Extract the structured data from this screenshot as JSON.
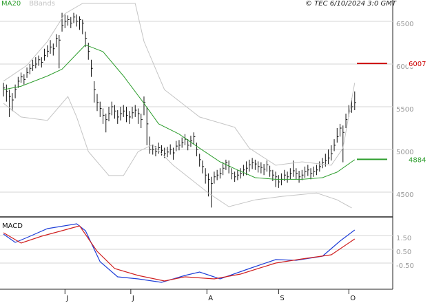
{
  "chart_data": [
    {
      "type": "ohlc",
      "note_text": "© TEC 6/10/2024 3:0 GMT",
      "xlim": [
        -1.2,
        133
      ],
      "ylim": [
        4210,
        6750
      ],
      "yticks": [
        4500,
        5000,
        5500,
        6000,
        6500
      ],
      "grid": true,
      "ohlc": {
        "color": "#111111",
        "x": [
          0,
          1,
          2,
          3,
          4,
          5,
          6,
          7,
          8,
          9,
          10,
          11,
          12,
          13,
          14,
          15,
          16,
          17,
          18,
          19,
          20,
          21,
          22,
          23,
          24,
          25,
          26,
          27,
          28,
          29,
          30,
          31,
          32,
          33,
          34,
          35,
          36,
          37,
          38,
          39,
          40,
          41,
          42,
          43,
          44,
          45,
          46,
          47,
          48,
          49,
          50,
          51,
          52,
          53,
          54,
          55,
          56,
          57,
          58,
          59,
          60,
          61,
          62,
          63,
          64,
          65,
          66,
          67,
          68,
          69,
          70,
          71,
          72,
          73,
          74,
          75,
          76,
          77,
          78,
          79,
          80,
          81,
          82,
          83,
          84,
          85,
          86,
          87,
          88,
          89,
          90,
          91,
          92,
          93,
          94,
          95,
          96,
          97,
          98,
          99,
          100,
          101,
          102,
          103,
          104,
          105,
          106,
          107,
          108,
          109,
          110,
          111,
          112,
          113,
          114,
          115,
          116,
          117,
          118,
          119,
          120
        ],
        "high": [
          5780,
          5760,
          5700,
          5660,
          5760,
          5850,
          5900,
          5880,
          5960,
          6000,
          6050,
          6080,
          6100,
          6080,
          6180,
          6220,
          6280,
          6240,
          6350,
          6340,
          6600,
          6580,
          6570,
          6550,
          6600,
          6580,
          6560,
          6520,
          6380,
          6250,
          6050,
          5800,
          5650,
          5560,
          5480,
          5420,
          5500,
          5560,
          5520,
          5460,
          5500,
          5520,
          5500,
          5450,
          5500,
          5520,
          5480,
          5420,
          5620,
          5500,
          5150,
          5060,
          5040,
          5080,
          5050,
          5020,
          5030,
          5060,
          5020,
          5100,
          5110,
          5140,
          5180,
          5120,
          5160,
          5200,
          5080,
          4950,
          4870,
          4780,
          4720,
          4680,
          4740,
          4760,
          4780,
          4850,
          4880,
          4870,
          4780,
          4740,
          4760,
          4780,
          4820,
          4860,
          4880,
          4900,
          4880,
          4860,
          4850,
          4830,
          4870,
          4810,
          4760,
          4740,
          4700,
          4720,
          4760,
          4740,
          4780,
          4870,
          4780,
          4750,
          4760,
          4800,
          4820,
          4780,
          4800,
          4820,
          4860,
          4900,
          4950,
          5000,
          5050,
          5120,
          5250,
          5300,
          5280,
          5420,
          5520,
          5600,
          5680
        ],
        "low": [
          5620,
          5560,
          5380,
          5450,
          5600,
          5720,
          5780,
          5760,
          5840,
          5880,
          5920,
          5950,
          5980,
          5960,
          6040,
          6080,
          6120,
          6100,
          6200,
          5950,
          6380,
          6420,
          6450,
          6420,
          6480,
          6440,
          6400,
          6350,
          6200,
          6050,
          5850,
          5550,
          5450,
          5380,
          5300,
          5200,
          5330,
          5400,
          5360,
          5300,
          5340,
          5380,
          5320,
          5300,
          5360,
          5380,
          5300,
          5250,
          5400,
          5050,
          4950,
          4940,
          4920,
          4950,
          4930,
          4900,
          4910,
          4940,
          4880,
          4980,
          4990,
          5020,
          5050,
          4990,
          5030,
          5060,
          4920,
          4800,
          4720,
          4600,
          4450,
          4320,
          4600,
          4640,
          4660,
          4700,
          4760,
          4720,
          4650,
          4620,
          4640,
          4660,
          4690,
          4700,
          4740,
          4770,
          4760,
          4730,
          4720,
          4700,
          4740,
          4680,
          4630,
          4560,
          4550,
          4580,
          4630,
          4610,
          4650,
          4680,
          4650,
          4610,
          4640,
          4670,
          4690,
          4650,
          4680,
          4700,
          4740,
          4780,
          4800,
          4830,
          4870,
          4980,
          5080,
          5150,
          4850,
          5250,
          5380,
          5430,
          5460
        ],
        "close": [
          5720,
          5680,
          5620,
          5580,
          5700,
          5800,
          5850,
          5820,
          5900,
          5950,
          5980,
          6000,
          6050,
          6020,
          6100,
          6150,
          6200,
          6180,
          6300,
          6280,
          6450,
          6500,
          6520,
          6480,
          6550,
          6500,
          6520,
          6480,
          6300,
          6150,
          5950,
          5700,
          5550,
          5480,
          5400,
          5350,
          5420,
          5500,
          5450,
          5380,
          5420,
          5450,
          5400,
          5380,
          5430,
          5460,
          5420,
          5350,
          5550,
          5300,
          5000,
          5000,
          4980,
          5020,
          4990,
          4950,
          4970,
          5000,
          4960,
          5040,
          5050,
          5080,
          5120,
          5050,
          5100,
          5150,
          5000,
          4880,
          4800,
          4700,
          4650,
          4600,
          4680,
          4700,
          4720,
          4780,
          4850,
          4800,
          4720,
          4680,
          4700,
          4720,
          4760,
          4780,
          4820,
          4850,
          4830,
          4800,
          4790,
          4770,
          4820,
          4750,
          4700,
          4680,
          4620,
          4650,
          4700,
          4680,
          4720,
          4750,
          4720,
          4680,
          4700,
          4740,
          4760,
          4720,
          4740,
          4760,
          4800,
          4850,
          4870,
          4900,
          4950,
          5050,
          5150,
          5250,
          5200,
          5350,
          5450,
          5500,
          5550
        ]
      },
      "series": [
        {
          "name": "MA20",
          "color": "#2e9e2e",
          "x": [
            0,
            6,
            15,
            20,
            28,
            34,
            41,
            48,
            53,
            60,
            67,
            74,
            79,
            86,
            93,
            102,
            109,
            114,
            120
          ],
          "values": [
            5700,
            5740,
            5860,
            5940,
            6225,
            6145,
            5860,
            5540,
            5300,
            5180,
            5015,
            4855,
            4775,
            4670,
            4650,
            4650,
            4670,
            4735,
            4880
          ]
        },
        {
          "name": "BBands",
          "color": "#c4c4c4",
          "lines": [
            {
              "x": [
                0,
                8,
                15,
                21,
                27,
                45,
                48,
                55,
                67,
                79,
                84,
                93,
                102,
                112,
                116,
                120
              ],
              "values": [
                5800,
                5985,
                6265,
                6590,
                6710,
                6710,
                6265,
                5700,
                5380,
                5260,
                5015,
                4815,
                4855,
                4815,
                5015,
                5780
              ]
            },
            {
              "x": [
                0,
                6,
                15,
                22,
                25,
                29,
                36,
                41,
                46,
                51,
                58,
                70,
                77,
                86,
                95,
                107,
                114,
                119
              ],
              "values": [
                5540,
                5380,
                5340,
                5620,
                5380,
                4975,
                4695,
                4695,
                4975,
                5055,
                4815,
                4490,
                4330,
                4410,
                4450,
                4490,
                4410,
                4315
              ]
            }
          ]
        }
      ],
      "levels": [
        {
          "value": 6007,
          "color": "#cc0000"
        },
        {
          "value": 4884,
          "color": "#2e9e2e"
        }
      ]
    },
    {
      "type": "line",
      "title": "MACD",
      "xlim": [
        -1.2,
        133
      ],
      "ylim": [
        -2.4,
        2.7
      ],
      "xticks": [
        {
          "value": 21,
          "label": "J"
        },
        {
          "value": 43.5,
          "label": "J"
        },
        {
          "value": 69.5,
          "label": "A"
        },
        {
          "value": 94,
          "label": "S"
        },
        {
          "value": 118,
          "label": "O"
        }
      ],
      "yticks": [
        {
          "value": 1.5,
          "label": "1.50"
        },
        {
          "value": 0.5,
          "label": "0.50"
        },
        {
          "value": -0.5,
          "label": "-0.50"
        }
      ],
      "grid": true,
      "series": [
        {
          "color": "#1f3fd8",
          "x": [
            0,
            4,
            8,
            15,
            25,
            28,
            33,
            39,
            46,
            54,
            62,
            67,
            74,
            84,
            93,
            100,
            109,
            115,
            120
          ],
          "values": [
            1.6,
            1.0,
            1.35,
            2.0,
            2.35,
            1.85,
            -0.4,
            -1.5,
            -1.65,
            -1.9,
            -1.4,
            -1.15,
            -1.65,
            -0.9,
            -0.25,
            -0.3,
            0,
            1.1,
            1.9
          ]
        },
        {
          "color": "#d02020",
          "x": [
            0,
            6,
            13,
            20,
            26,
            32,
            38,
            46,
            55,
            62,
            72,
            81,
            93,
            102,
            112,
            120
          ],
          "values": [
            1.7,
            0.95,
            1.45,
            1.85,
            2.2,
            0.35,
            -0.9,
            -1.4,
            -1.8,
            -1.5,
            -1.65,
            -1.3,
            -0.5,
            -0.2,
            0.1,
            1.25
          ]
        }
      ]
    }
  ]
}
